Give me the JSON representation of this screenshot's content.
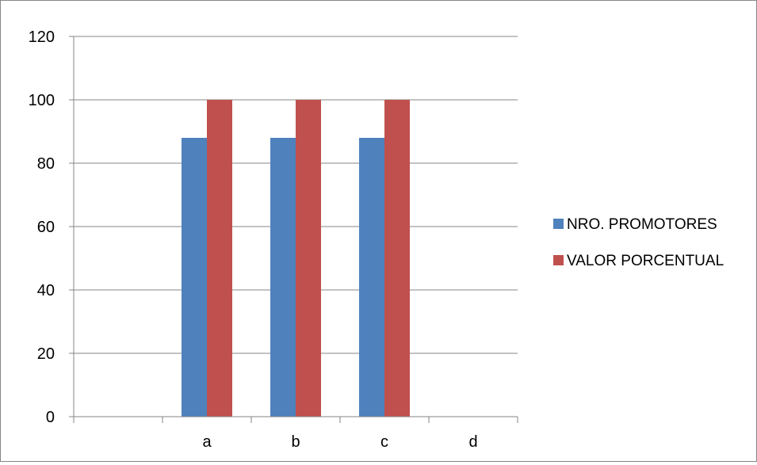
{
  "chart_data": {
    "type": "bar",
    "title": "",
    "xlabel": "",
    "ylabel": "",
    "categories": [
      "",
      "a",
      "b",
      "c",
      "d"
    ],
    "series": [
      {
        "name": "NRO. PROMOTORES",
        "values": [
          null,
          88,
          88,
          88,
          null
        ],
        "color": "#4f81bd"
      },
      {
        "name": "VALOR PORCENTUAL",
        "values": [
          null,
          100,
          100,
          100,
          null
        ],
        "color": "#c0504d"
      }
    ],
    "ylim": [
      0,
      120
    ],
    "yticks": [
      0,
      20,
      40,
      60,
      80,
      100,
      120
    ],
    "grid": true,
    "legend_position": "right"
  }
}
